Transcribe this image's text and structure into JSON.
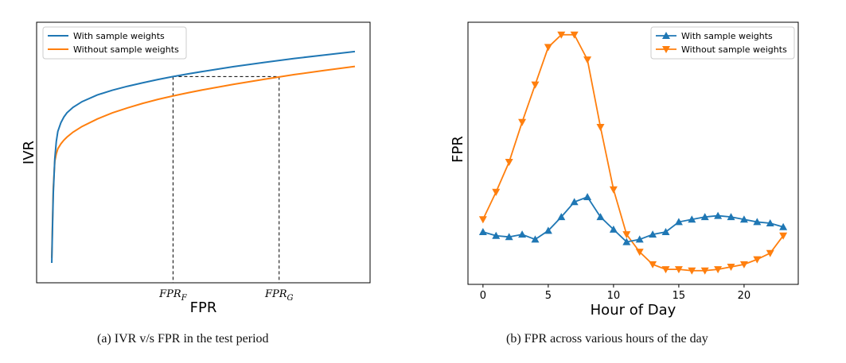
{
  "chart_data": [
    {
      "type": "line",
      "title": "",
      "xlabel": "FPR",
      "ylabel": "IVR",
      "ticks_shown": false,
      "grid": false,
      "legend_position": "top-left",
      "colors": {
        "series1": "#1f77b4",
        "series2": "#ff7f0e"
      },
      "xlim": [
        -0.05,
        1.05
      ],
      "ylim": [
        0,
        1.05
      ],
      "series": [
        {
          "name": "With sample weights",
          "x": [
            0.0,
            0.002,
            0.005,
            0.01,
            0.015,
            0.02,
            0.03,
            0.04,
            0.05,
            0.07,
            0.1,
            0.15,
            0.2,
            0.25,
            0.3,
            0.35,
            0.4,
            0.45,
            0.5,
            0.6,
            0.7,
            0.8,
            0.9,
            1.0
          ],
          "y": [
            0.08,
            0.2,
            0.36,
            0.5,
            0.57,
            0.61,
            0.645,
            0.668,
            0.685,
            0.707,
            0.73,
            0.757,
            0.776,
            0.792,
            0.806,
            0.819,
            0.831,
            0.842,
            0.852,
            0.871,
            0.888,
            0.904,
            0.918,
            0.932
          ]
        },
        {
          "name": "Without sample weights",
          "x": [
            0.0,
            0.002,
            0.005,
            0.01,
            0.015,
            0.02,
            0.03,
            0.04,
            0.05,
            0.07,
            0.1,
            0.15,
            0.2,
            0.25,
            0.3,
            0.35,
            0.4,
            0.45,
            0.5,
            0.6,
            0.7,
            0.8,
            0.9,
            1.0
          ],
          "y": [
            0.1,
            0.22,
            0.38,
            0.49,
            0.52,
            0.54,
            0.56,
            0.575,
            0.587,
            0.607,
            0.63,
            0.66,
            0.685,
            0.705,
            0.723,
            0.739,
            0.753,
            0.766,
            0.778,
            0.8,
            0.82,
            0.839,
            0.856,
            0.872
          ]
        }
      ],
      "annotations": [
        {
          "label_main": "FPR",
          "label_sub": "F",
          "x": 0.4,
          "y": 0.831
        },
        {
          "label_main": "FPR",
          "label_sub": "G",
          "x": 0.75,
          "y": 0.831
        }
      ],
      "caption": "(a) IVR v/s FPR in the test period"
    },
    {
      "type": "line",
      "title": "",
      "xlabel": "Hour of Day",
      "ylabel": "FPR",
      "grid": false,
      "legend_position": "top-right",
      "colors": {
        "series1": "#1f77b4",
        "series2": "#ff7f0e"
      },
      "xlim": [
        -1.15,
        24.15
      ],
      "ylim": [
        0,
        1.05
      ],
      "xticks": [
        "0",
        "5",
        "10",
        "15",
        "20"
      ],
      "xtick_values": [
        0,
        5,
        10,
        15,
        20
      ],
      "x": [
        0,
        1,
        2,
        3,
        4,
        5,
        6,
        7,
        8,
        9,
        10,
        11,
        12,
        13,
        14,
        15,
        16,
        17,
        18,
        19,
        20,
        21,
        22,
        23
      ],
      "series": [
        {
          "name": "With sample weights",
          "marker": "triangle-up",
          "values": [
            0.21,
            0.195,
            0.19,
            0.2,
            0.18,
            0.215,
            0.27,
            0.33,
            0.35,
            0.27,
            0.22,
            0.17,
            0.18,
            0.2,
            0.21,
            0.25,
            0.26,
            0.27,
            0.275,
            0.27,
            0.26,
            0.25,
            0.245,
            0.23
          ]
        },
        {
          "name": "Without sample weights",
          "marker": "triangle-down",
          "values": [
            0.26,
            0.37,
            0.49,
            0.65,
            0.8,
            0.95,
            1.0,
            1.0,
            0.9,
            0.63,
            0.38,
            0.2,
            0.13,
            0.08,
            0.06,
            0.06,
            0.055,
            0.055,
            0.06,
            0.07,
            0.08,
            0.1,
            0.125,
            0.195
          ]
        }
      ],
      "caption": "(b) FPR across various hours of the day"
    }
  ]
}
